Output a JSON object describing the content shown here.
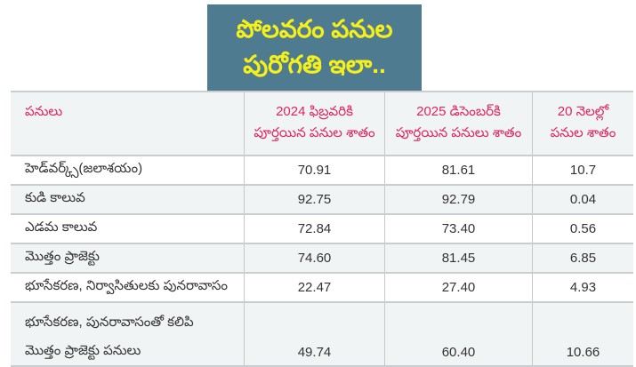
{
  "title": {
    "line1": "పోలవరం పనుల",
    "line2": "పురోగతి ఇలా.."
  },
  "table": {
    "headers": [
      {
        "line1": "పనులు",
        "line2": ""
      },
      {
        "line1": "2024 ఫిబ్రవరికి",
        "line2": "పూర్తయిన పనుల శాతం"
      },
      {
        "line1": "2025 డిసెంబర్‌కి",
        "line2": "పూర్తయిన పనులు శాతం"
      },
      {
        "line1": "20 నెలల్లో",
        "line2": "పనుల శాతం"
      }
    ],
    "rows": [
      {
        "name": "హెడ్‌వర్క్స్(జలాశయం)",
        "v2024": "70.91",
        "v2025": "81.61",
        "diff": "10.7"
      },
      {
        "name": "కుడి కాలువ",
        "v2024": "92.75",
        "v2025": "92.79",
        "diff": "0.04"
      },
      {
        "name": "ఎడమ కాలువ",
        "v2024": "72.84",
        "v2025": "73.40",
        "diff": "0.56"
      },
      {
        "name": "మొత్తం ప్రాజెక్టు",
        "v2024": "74.60",
        "v2025": "81.45",
        "diff": "6.85"
      },
      {
        "name": "భూసేకరణ, నిర్వాసితులకు పునరావాసం",
        "v2024": "22.47",
        "v2025": "27.40",
        "diff": "4.93"
      },
      {
        "name": "భూసేకరణ, పునరావాసంతో కలిపి",
        "name2": "మొత్తం ప్రాజెక్టు పనులు",
        "v2024": "49.74",
        "v2025": "60.40",
        "diff": "10.66"
      }
    ]
  },
  "colors": {
    "title_bg": "#4f7b90",
    "title_text": "#f5ef1c",
    "header_text": "#e0245e",
    "stripe": "#f1f4f5"
  }
}
